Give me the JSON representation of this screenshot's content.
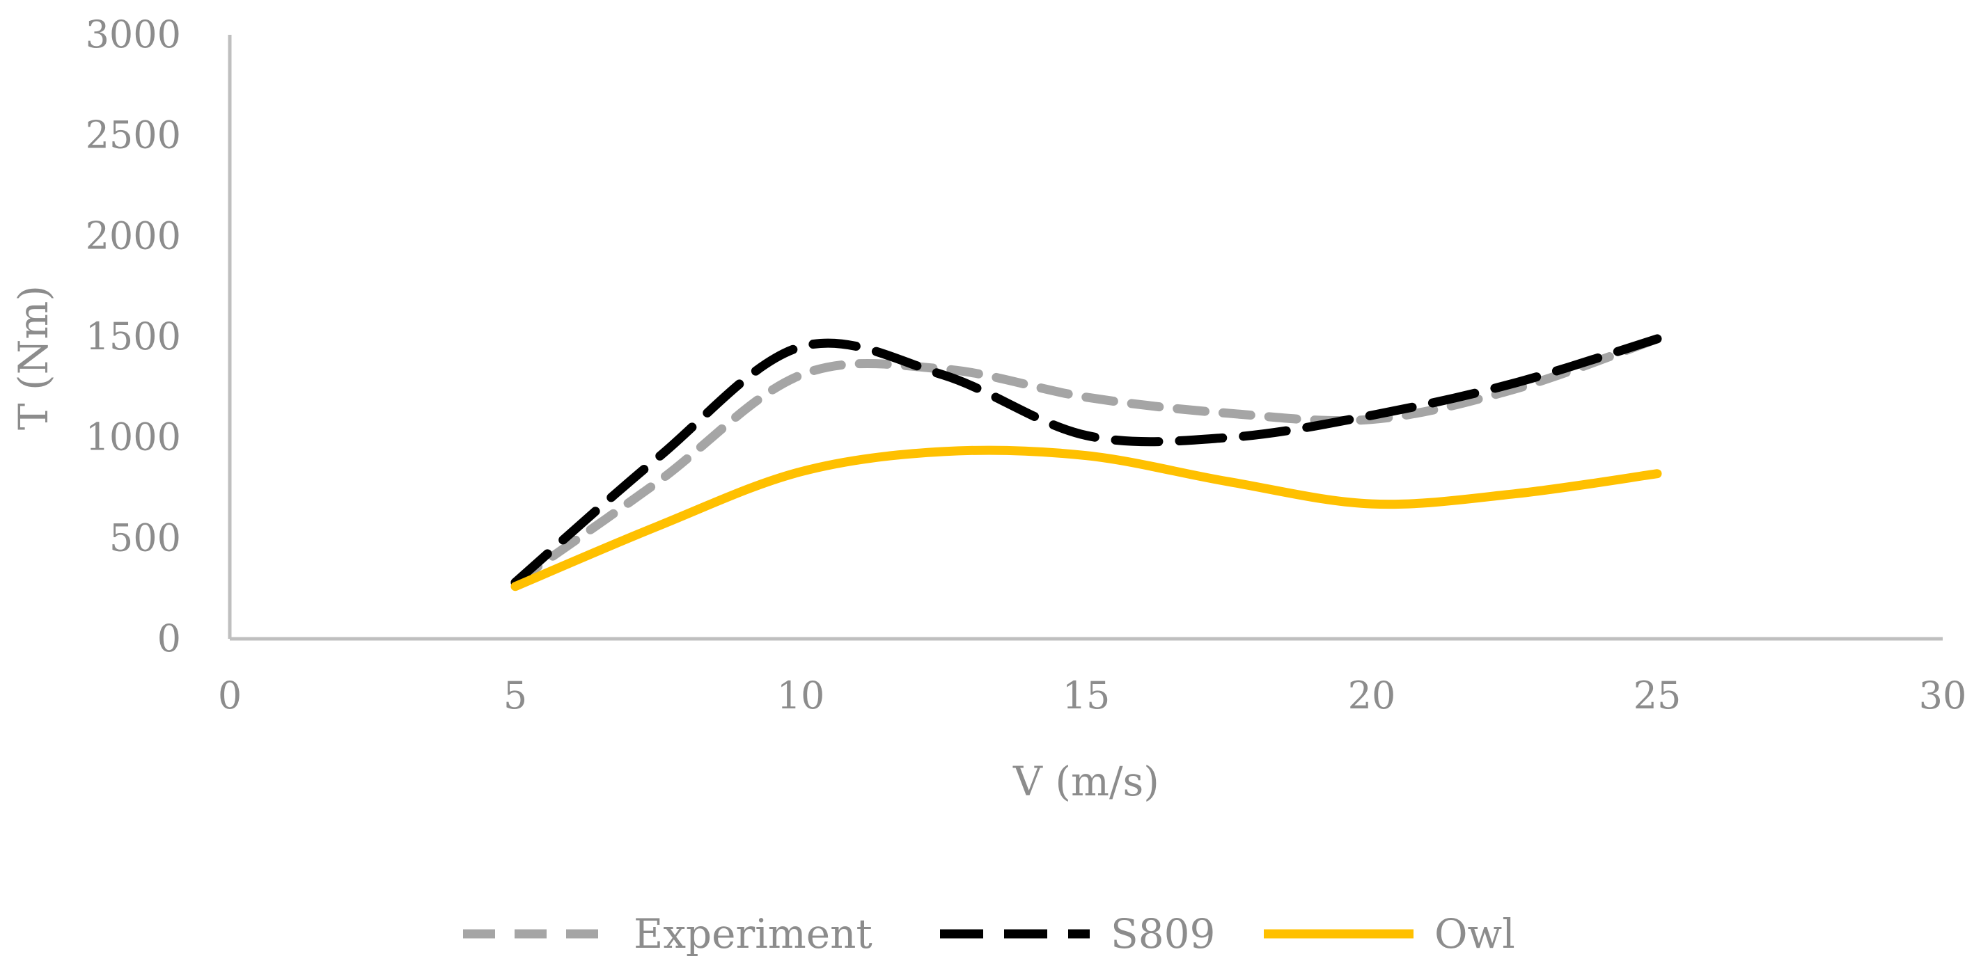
{
  "chart_data": {
    "type": "line",
    "title": "",
    "xlabel": "V (m/s)",
    "ylabel": "T (Nm)",
    "xlim": [
      0,
      30
    ],
    "ylim": [
      0,
      3000
    ],
    "x_ticks": [
      0,
      5,
      10,
      15,
      20,
      25,
      30
    ],
    "y_ticks": [
      0,
      500,
      1000,
      1500,
      2000,
      2500,
      3000
    ],
    "x_tick_labels": [
      "0",
      "5",
      "10",
      "15",
      "20",
      "25",
      "30"
    ],
    "y_tick_labels": [
      "0",
      "500",
      "1000",
      "1500",
      "2000",
      "2500",
      "3000"
    ],
    "grid": false,
    "legend_position": "bottom",
    "series": [
      {
        "name": "Experiment",
        "color": "#a5a5a5",
        "style": "dashed",
        "x": [
          5,
          7.5,
          10,
          12.5,
          15,
          17.5,
          20,
          22.5,
          25
        ],
        "y": [
          280,
          780,
          1310,
          1340,
          1200,
          1120,
          1090,
          1240,
          1490
        ]
      },
      {
        "name": "S809",
        "color": "#000000",
        "style": "long-dashed",
        "x": [
          5,
          7.5,
          10,
          12.5,
          15,
          17.5,
          20,
          22.5,
          25
        ],
        "y": [
          280,
          900,
          1450,
          1310,
          1010,
          1000,
          1110,
          1270,
          1490
        ]
      },
      {
        "name": "Owl",
        "color": "#ffc000",
        "style": "solid",
        "x": [
          5,
          7.5,
          10,
          12.5,
          15,
          17.5,
          20,
          22.5,
          25
        ],
        "y": [
          260,
          560,
          830,
          930,
          910,
          780,
          670,
          720,
          820
        ]
      }
    ]
  }
}
